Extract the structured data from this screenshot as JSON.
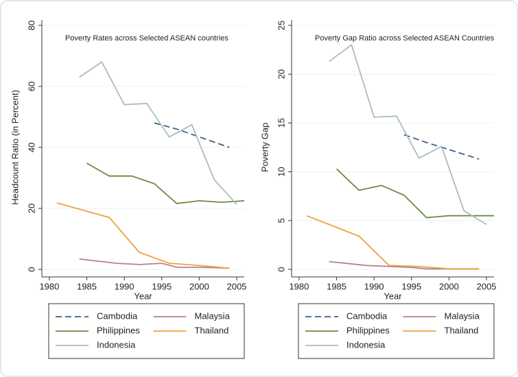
{
  "chart_data": [
    {
      "type": "line",
      "title": "Poverty Rates across Selected ASEAN countries",
      "x_label": "Year",
      "y_label": "Headcount Ratio (in Percent)",
      "xlim": [
        1979,
        2006
      ],
      "xticks": [
        1980,
        1985,
        1990,
        1995,
        2000,
        2005
      ],
      "ylim": [
        0,
        80
      ],
      "yticks": [
        0,
        20,
        40,
        60,
        80
      ],
      "grid": true,
      "series": [
        {
          "name": "Cambodia",
          "color": "#3d5f80",
          "dashed": true,
          "x": [
            1994,
            1997,
            2004
          ],
          "values": [
            48,
            46,
            40
          ]
        },
        {
          "name": "Malaysia",
          "color": "#b5808b",
          "dashed": false,
          "x": [
            1984,
            1989,
            1992,
            1995,
            1997,
            2000,
            2004
          ],
          "values": [
            3.4,
            2,
            1.6,
            2,
            0.7,
            0.7,
            0.4
          ]
        },
        {
          "name": "Philippines",
          "color": "#6b8a42",
          "dashed": false,
          "x": [
            1985,
            1988,
            1991,
            1994,
            1997,
            2000,
            2003,
            2006
          ],
          "values": [
            34.8,
            30.6,
            30.6,
            28.1,
            21.6,
            22.5,
            22,
            22.5
          ]
        },
        {
          "name": "Thailand",
          "color": "#e9a43c",
          "dashed": false,
          "x": [
            1981,
            1988,
            1992,
            1996,
            2000,
            2004
          ],
          "values": [
            21.8,
            17,
            5.6,
            2,
            1.3,
            0.4
          ]
        },
        {
          "name": "Indonesia",
          "color": "#a9bcc1",
          "dashed": false,
          "x": [
            1984,
            1987,
            1990,
            1993,
            1996,
            1999,
            2002,
            2005
          ],
          "values": [
            63,
            68,
            54,
            54.4,
            43.4,
            47.4,
            29.4,
            21.3
          ]
        }
      ]
    },
    {
      "type": "line",
      "title": "Poverty Gap Ratio across Selected ASEAN Countries",
      "x_label": "Year",
      "y_label": "Poverty Gap",
      "xlim": [
        1979,
        2006
      ],
      "xticks": [
        1980,
        1985,
        1990,
        1995,
        2000,
        2005
      ],
      "ylim": [
        0,
        25
      ],
      "yticks": [
        0,
        5,
        10,
        15,
        20,
        25
      ],
      "grid": true,
      "series": [
        {
          "name": "Cambodia",
          "color": "#3d5f80",
          "dashed": true,
          "x": [
            1994,
            1997,
            2004
          ],
          "values": [
            13.8,
            13,
            11.3
          ]
        },
        {
          "name": "Malaysia",
          "color": "#b5808b",
          "dashed": false,
          "x": [
            1984,
            1989,
            1992,
            1995,
            1997,
            2000,
            2004
          ],
          "values": [
            0.8,
            0.4,
            0.3,
            0.2,
            0.05,
            0.05,
            0.05
          ]
        },
        {
          "name": "Philippines",
          "color": "#6b8a42",
          "dashed": false,
          "x": [
            1985,
            1988,
            1991,
            1994,
            1997,
            2000,
            2003,
            2006
          ],
          "values": [
            10.3,
            8.1,
            8.6,
            7.6,
            5.3,
            5.5,
            5.5,
            5.5
          ]
        },
        {
          "name": "Thailand",
          "color": "#e9a43c",
          "dashed": false,
          "x": [
            1981,
            1988,
            1992,
            1996,
            2000,
            2004
          ],
          "values": [
            5.5,
            3.4,
            0.4,
            0.3,
            0.05,
            0.05
          ]
        },
        {
          "name": "Indonesia",
          "color": "#a9bcc1",
          "dashed": false,
          "x": [
            1984,
            1987,
            1990,
            1993,
            1996,
            1999,
            2002,
            2005
          ],
          "values": [
            21.3,
            23,
            15.6,
            15.7,
            11.4,
            12.6,
            6,
            4.6
          ]
        }
      ]
    }
  ]
}
